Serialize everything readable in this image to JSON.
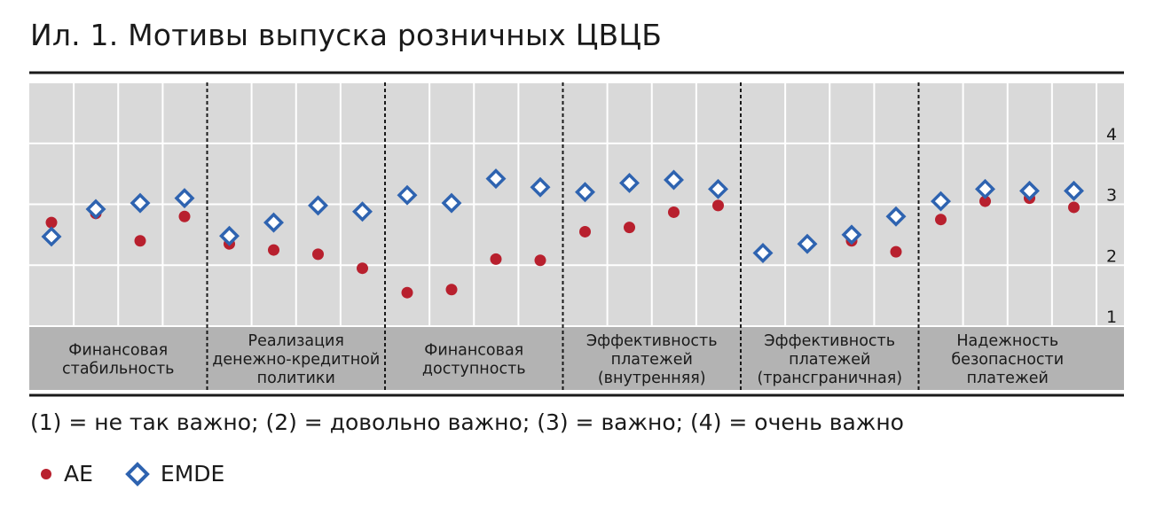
{
  "title": "Ил. 1. Мотивы выпуска розничных ЦВЦБ",
  "caption": "(1) = не так важно; (2) = довольно важно; (3) = важно; (4) = очень важно",
  "colors": {
    "AE": "#b8202e",
    "EMDE": "#2e63b0",
    "plot_bg": "#d9d9d9",
    "label_bg": "#b3b3b3"
  },
  "chart_data": {
    "type": "scatter",
    "ylim": [
      1,
      5
    ],
    "y_ticks": [
      "1",
      "2",
      "3",
      "4"
    ],
    "groups": [
      {
        "label": "Финансовая стабильность",
        "lines": [
          "Финансовая",
          "стабильность"
        ]
      },
      {
        "label": "Реализация денежно-кредитной политики",
        "lines": [
          "Реализация",
          "денежно-кредитной",
          "политики"
        ]
      },
      {
        "label": "Финансовая доступность",
        "lines": [
          "Финансовая",
          "доступность"
        ]
      },
      {
        "label": "Эффективность платежей (внутренняя)",
        "lines": [
          "Эффективность",
          "платежей",
          "(внутренняя)"
        ]
      },
      {
        "label": "Эффективность платежей (трансграничная)",
        "lines": [
          "Эффективность",
          "платежей",
          "(трансграничная)"
        ]
      },
      {
        "label": "Надежность безопасности платежей",
        "lines": [
          "Надежность",
          "безопасности",
          "платежей"
        ]
      }
    ],
    "series": [
      {
        "name": "AE",
        "values": [
          [
            2.7,
            2.85,
            2.4,
            2.8
          ],
          [
            2.35,
            2.25,
            2.18,
            1.95
          ],
          [
            1.55,
            1.6,
            2.1,
            2.08
          ],
          [
            2.55,
            2.62,
            2.87,
            2.98
          ],
          [
            2.2,
            2.35,
            2.4,
            2.22
          ],
          [
            2.75,
            3.05,
            3.1,
            2.95
          ]
        ]
      },
      {
        "name": "EMDE",
        "values": [
          [
            2.47,
            2.92,
            3.02,
            3.1
          ],
          [
            2.48,
            2.7,
            2.98,
            2.88
          ],
          [
            3.15,
            3.02,
            3.42,
            3.28
          ],
          [
            3.2,
            3.35,
            3.4,
            3.25
          ],
          [
            2.2,
            2.35,
            2.5,
            2.8
          ],
          [
            3.05,
            3.25,
            3.22,
            3.22
          ]
        ]
      }
    ]
  }
}
